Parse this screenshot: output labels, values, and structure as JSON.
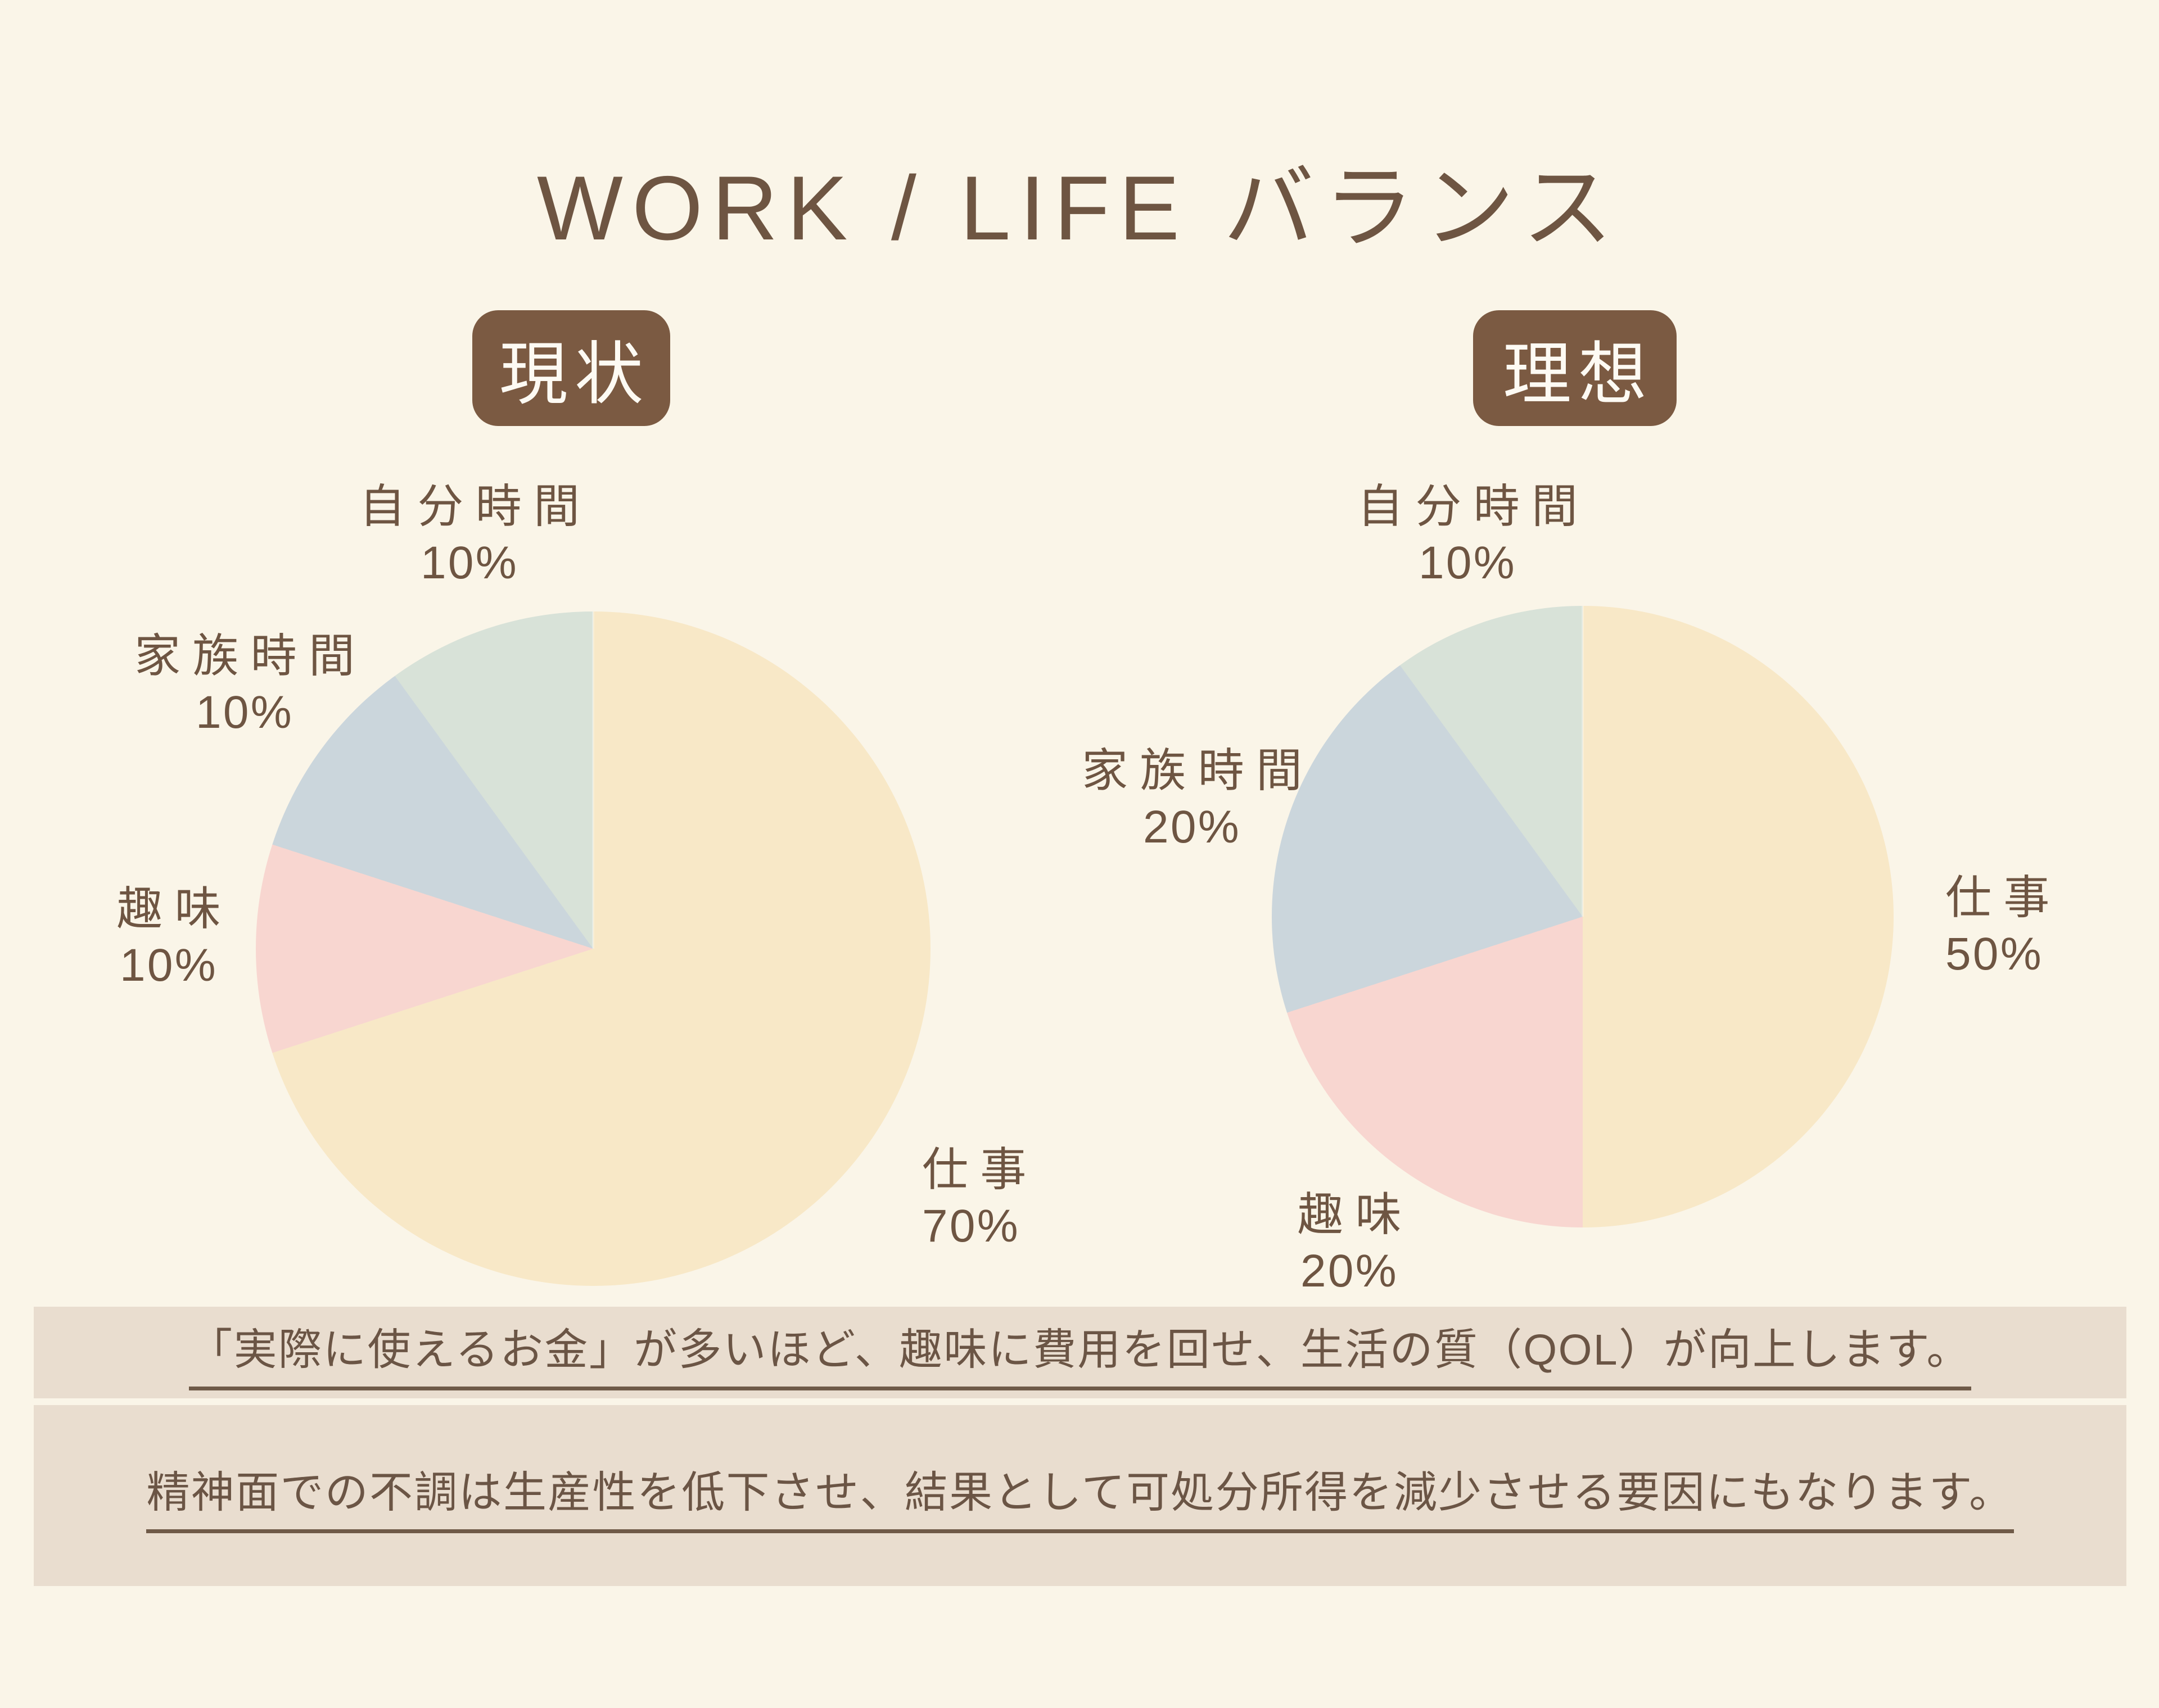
{
  "title": "WORK / LIFE バランス",
  "colors": {
    "background": "#faf5e8",
    "badge_brown": "#7b5a42",
    "text_brown": "#6e5542",
    "panel_beige": "#e9ddcf",
    "underline_brown": "#6f5a48",
    "slice_work_cream": "#f8e8c7",
    "slice_hobby_pink": "#f8d6d0",
    "slice_family_blue": "#cbd6dc",
    "slice_self_mint": "#d8e2d8"
  },
  "chart_data": [
    {
      "type": "pie",
      "title": "現状",
      "legend_position": "around",
      "slices": [
        {
          "label": "仕事",
          "value": 70,
          "pct": "70%",
          "color": "#f8e8c7"
        },
        {
          "label": "趣味",
          "value": 10,
          "pct": "10%",
          "color": "#f8d6d0"
        },
        {
          "label": "家族時間",
          "value": 10,
          "pct": "10%",
          "color": "#cbd6dc"
        },
        {
          "label": "自分時間",
          "value": 10,
          "pct": "10%",
          "color": "#d8e2d8"
        }
      ]
    },
    {
      "type": "pie",
      "title": "理想",
      "legend_position": "around",
      "slices": [
        {
          "label": "仕事",
          "value": 50,
          "pct": "50%",
          "color": "#f8e8c7"
        },
        {
          "label": "趣味",
          "value": 20,
          "pct": "20%",
          "color": "#f8d6d0"
        },
        {
          "label": "家族時間",
          "value": 20,
          "pct": "20%",
          "color": "#cbd6dc"
        },
        {
          "label": "自分時間",
          "value": 10,
          "pct": "10%",
          "color": "#d8e2d8"
        }
      ]
    }
  ],
  "notes": [
    "「実際に使えるお金」が多いほど、趣味に費用を回せ、生活の質（QOL）が向上します。",
    "精神面での不調は生産性を低下させ、結果として可処分所得を減少させる要因にもなります。"
  ]
}
